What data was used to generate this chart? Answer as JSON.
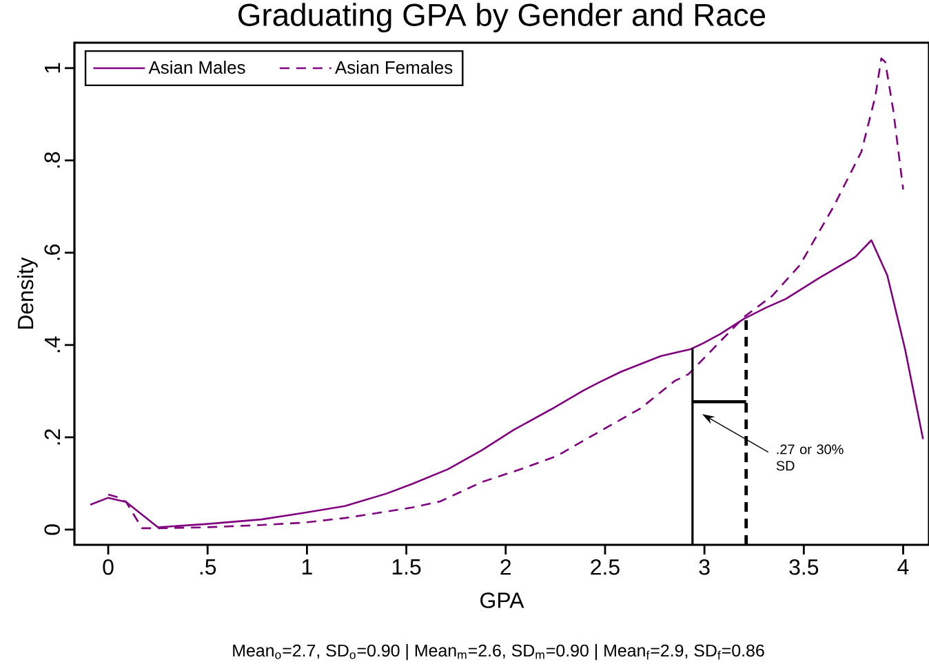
{
  "chart_data": {
    "type": "line",
    "title": "Graduating GPA by Gender and Race",
    "xlabel": "GPA",
    "ylabel": "Density",
    "xlim": [
      -0.17,
      4.13
    ],
    "ylim": [
      -0.033,
      1.055
    ],
    "xticks": [
      0,
      {
        "value": 0.5,
        "label": ".5"
      },
      1,
      1.5,
      2,
      2.5,
      3,
      3.5,
      4
    ],
    "yticks": [
      0,
      {
        "value": 0.2,
        "label": ".2"
      },
      {
        "value": 0.4,
        "label": ".4"
      },
      {
        "value": 0.6,
        "label": ".6"
      },
      {
        "value": 0.8,
        "label": ".8"
      },
      1
    ],
    "legend": "top left",
    "series": [
      {
        "name": "Asian Males",
        "color": "#800080",
        "line_style": "solid",
        "x": [
          -0.09,
          0,
          0.09,
          0.25,
          0.49,
          0.77,
          0.98,
          1.19,
          1.4,
          1.53,
          1.71,
          1.88,
          2.04,
          2.23,
          2.39,
          2.47,
          2.58,
          2.78,
          2.93,
          2.99,
          3.08,
          3.2,
          3.31,
          3.41,
          3.58,
          3.76,
          3.84,
          3.92,
          4.01,
          4.1
        ],
        "values": [
          0.054,
          0.069,
          0.06,
          0.005,
          0.012,
          0.022,
          0.036,
          0.051,
          0.078,
          0.099,
          0.131,
          0.172,
          0.216,
          0.261,
          0.301,
          0.319,
          0.342,
          0.376,
          0.391,
          0.403,
          0.424,
          0.457,
          0.481,
          0.5,
          0.546,
          0.591,
          0.627,
          0.551,
          0.39,
          0.196
        ]
      },
      {
        "name": "Asian Females",
        "color": "#800080",
        "line_style": "dashed",
        "x": [
          0,
          0.05,
          0.09,
          0.17,
          0.25,
          0.49,
          0.77,
          0.98,
          1.19,
          1.4,
          1.53,
          1.67,
          1.88,
          2.09,
          2.26,
          2.47,
          2.68,
          2.85,
          2.92,
          3.2,
          3.34,
          3.48,
          3.65,
          3.79,
          3.86,
          3.89,
          3.91,
          3.95,
          4.0
        ],
        "values": [
          0.076,
          0.07,
          0.06,
          0.003,
          0.003,
          0.005,
          0.01,
          0.015,
          0.025,
          0.039,
          0.048,
          0.061,
          0.103,
          0.133,
          0.16,
          0.212,
          0.263,
          0.322,
          0.337,
          0.461,
          0.506,
          0.573,
          0.7,
          0.819,
          0.939,
          1.021,
          1.013,
          0.909,
          0.737
        ]
      }
    ],
    "ref_lines": [
      {
        "axis": "x",
        "value": 2.94,
        "line_style": "solid"
      },
      {
        "axis": "x",
        "value": 3.21,
        "line_style": "dashed"
      }
    ],
    "annotations": [
      ".27 or 30% SD",
      "Mean$_{o}$=2.7, SD$_{o}$=0.90 | Mean$_{m}$=2.6, SD$_{m}$=0.90 | Mean$_{f}$=2.9, SD$_{f}$=0.86"
    ]
  }
}
